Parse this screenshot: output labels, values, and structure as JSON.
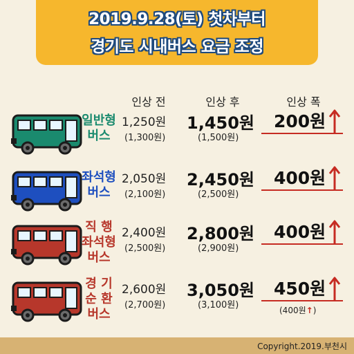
{
  "header": {
    "line1": "2019.9.28(토) 첫차부터",
    "line2": "경기도 시내버스 요금 조정"
  },
  "columns": {
    "before": "인상 전",
    "after": "인상 후",
    "amount": "인상 폭"
  },
  "rows": [
    {
      "type": "일반형\n버스",
      "before": "1,250원",
      "before_sub": "(1,300원)",
      "after": "1,450원",
      "after_sub": "(1,500원)",
      "amount": "200원",
      "amount_note": null,
      "bus_color": "#1a8a6e"
    },
    {
      "type": "좌석형\n버스",
      "before": "2,050원",
      "before_sub": "(2,100원)",
      "after": "2,450원",
      "after_sub": "(2,500원)",
      "amount": "400원",
      "amount_note": null,
      "bus_color": "#1e4fbf"
    },
    {
      "type": "직 행\n좌석형\n버스",
      "before": "2,400원",
      "before_sub": "(2,500원)",
      "after": "2,800원",
      "after_sub": "(2,900원)",
      "amount": "400원",
      "amount_note": null,
      "bus_color": "#b7372b"
    },
    {
      "type": "경 기\n순 환\n버스",
      "before": "2,600원",
      "before_sub": "(2,700원)",
      "after": "3,050원",
      "after_sub": "(3,100원)",
      "amount": "450원",
      "amount_note": "(400원",
      "bus_color": "#b7372b"
    }
  ],
  "footer": {
    "copyright": "Copyright.2019.부천시"
  },
  "colors": {
    "accent": "#c62b22",
    "header_bg": "#f6b72d",
    "title_outline": "#1e4a7e"
  }
}
